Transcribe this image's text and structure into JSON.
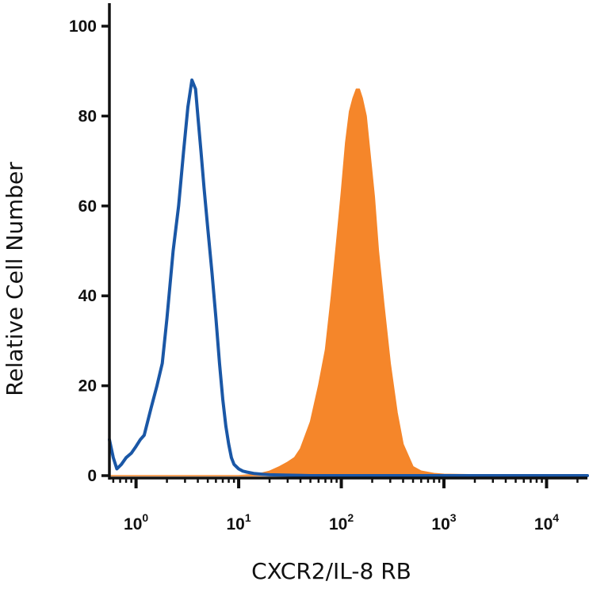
{
  "chart_data": {
    "type": "area",
    "title": "",
    "xlabel": "CXCR2/IL-8 RB",
    "ylabel": "Relative Cell Number",
    "x_scale": "log",
    "xlim": [
      0.55,
      25000
    ],
    "ylim": [
      0,
      100
    ],
    "yticks": [
      "0",
      "20",
      "40",
      "60",
      "80",
      "100"
    ],
    "xticks": [
      {
        "base": "10",
        "exp": "0",
        "value": 1
      },
      {
        "base": "10",
        "exp": "1",
        "value": 10
      },
      {
        "base": "10",
        "exp": "2",
        "value": 100
      },
      {
        "base": "10",
        "exp": "3",
        "value": 1000
      },
      {
        "base": "10",
        "exp": "4",
        "value": 10000
      }
    ],
    "grid": false,
    "legend": "none",
    "series": [
      {
        "style": "outline",
        "color": "#1a57a6",
        "x": [
          0.55,
          0.6,
          0.65,
          0.72,
          0.8,
          0.9,
          1.0,
          1.1,
          1.2,
          1.4,
          1.6,
          1.8,
          2.0,
          2.3,
          2.6,
          2.9,
          3.2,
          3.5,
          3.8,
          4.0,
          4.3,
          4.6,
          5.0,
          5.5,
          6.0,
          6.5,
          7.0,
          7.5,
          8.0,
          8.5,
          9.0,
          10.0,
          11.0,
          12.0,
          14.0,
          17.0,
          20.0,
          30.0,
          50.0,
          100.0,
          200.0,
          500.0,
          1000.0,
          25000.0
        ],
        "y": [
          8,
          4,
          1.5,
          2.5,
          4,
          5,
          6.5,
          8,
          9,
          15,
          20,
          25,
          35,
          50,
          60,
          72,
          82,
          88,
          86,
          80,
          72,
          64,
          55,
          45,
          35,
          25,
          17,
          11,
          7,
          4,
          2.5,
          1.5,
          1,
          0.8,
          0.5,
          0.3,
          0.2,
          0.1,
          0,
          0,
          0,
          0,
          0,
          0
        ]
      },
      {
        "style": "filled",
        "color": "#f5862a",
        "x": [
          0.55,
          5.0,
          10.0,
          15.0,
          20.0,
          25.0,
          30.0,
          35.0,
          40.0,
          50.0,
          60.0,
          70.0,
          80.0,
          90.0,
          100.0,
          110.0,
          120.0,
          130.0,
          140.0,
          150.0,
          160.0,
          175.0,
          190.0,
          210.0,
          230.0,
          260.0,
          300.0,
          350.0,
          400.0,
          500.0,
          600.0,
          800.0,
          1000.0,
          2000.0,
          10000.0,
          25000.0
        ],
        "y": [
          0,
          0,
          0,
          0.3,
          1,
          2,
          3,
          4,
          6,
          12,
          20,
          28,
          40,
          52,
          63,
          74,
          81,
          84,
          86,
          86,
          84,
          80,
          72,
          62,
          50,
          38,
          25,
          14,
          7,
          2,
          1,
          0.5,
          0.3,
          0.2,
          0.1,
          0.1
        ]
      }
    ]
  }
}
